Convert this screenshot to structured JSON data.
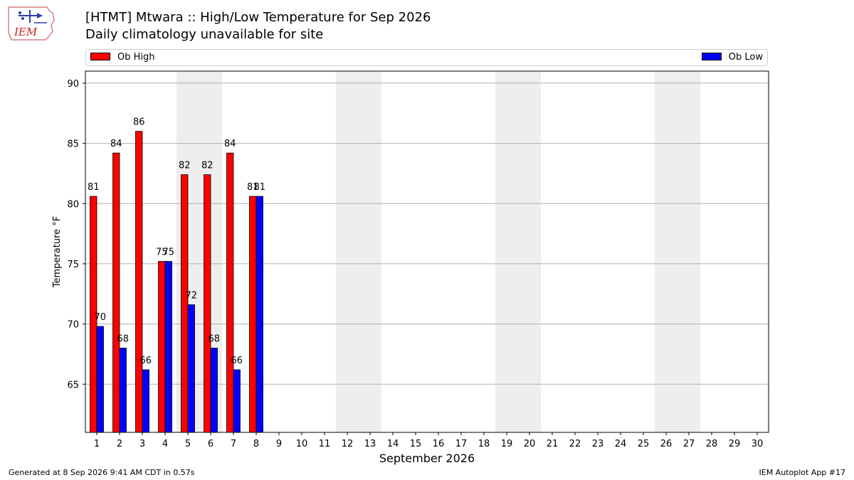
{
  "header": {
    "title": "[HTMT] Mtwara :: High/Low Temperature for Sep 2026",
    "subtitle": "Daily climatology unavailable for site",
    "logo_text": "IEM"
  },
  "footer": {
    "generated": "Generated at 8 Sep 2026 9:41 AM CDT in 0.57s",
    "app": "IEM Autoplot App #17"
  },
  "colors": {
    "high": "#ff0000",
    "low": "#0000ff",
    "weekend_shade": "#eeeeee",
    "grid": "#b0b0b0"
  },
  "chart_data": {
    "type": "bar",
    "title": "[HTMT] Mtwara :: High/Low Temperature for Sep 2026",
    "subtitle": "Daily climatology unavailable for site",
    "xlabel": "September 2026",
    "ylabel": "Temperature °F",
    "categories": [
      "1",
      "2",
      "3",
      "4",
      "5",
      "6",
      "7",
      "8",
      "9",
      "10",
      "11",
      "12",
      "13",
      "14",
      "15",
      "16",
      "17",
      "18",
      "19",
      "20",
      "21",
      "22",
      "23",
      "24",
      "25",
      "26",
      "27",
      "28",
      "29",
      "30"
    ],
    "series": [
      {
        "name": "Ob High",
        "color": "#ff0000",
        "values": [
          80.6,
          84.2,
          86.0,
          75.2,
          82.4,
          82.4,
          84.2,
          80.6,
          null,
          null,
          null,
          null,
          null,
          null,
          null,
          null,
          null,
          null,
          null,
          null,
          null,
          null,
          null,
          null,
          null,
          null,
          null,
          null,
          null,
          null
        ]
      },
      {
        "name": "Ob Low",
        "color": "#0000ff",
        "values": [
          69.8,
          68.0,
          66.2,
          75.2,
          71.6,
          68.0,
          66.2,
          80.6,
          null,
          null,
          null,
          null,
          null,
          null,
          null,
          null,
          null,
          null,
          null,
          null,
          null,
          null,
          null,
          null,
          null,
          null,
          null,
          null,
          null,
          null
        ]
      }
    ],
    "labels_high": [
      "81",
      "84",
      "86",
      "75",
      "82",
      "82",
      "84",
      "81"
    ],
    "labels_low": [
      "70",
      "68",
      "66",
      "75",
      "72",
      "68",
      "66",
      "81"
    ],
    "ylim": [
      61,
      91
    ],
    "yticks": [
      65,
      70,
      75,
      80,
      85,
      90
    ],
    "shaded_days": [
      [
        5,
        6
      ],
      [
        12,
        13
      ],
      [
        19,
        20
      ],
      [
        26,
        27
      ]
    ],
    "grid": true,
    "legend": "top, spanning full width"
  }
}
